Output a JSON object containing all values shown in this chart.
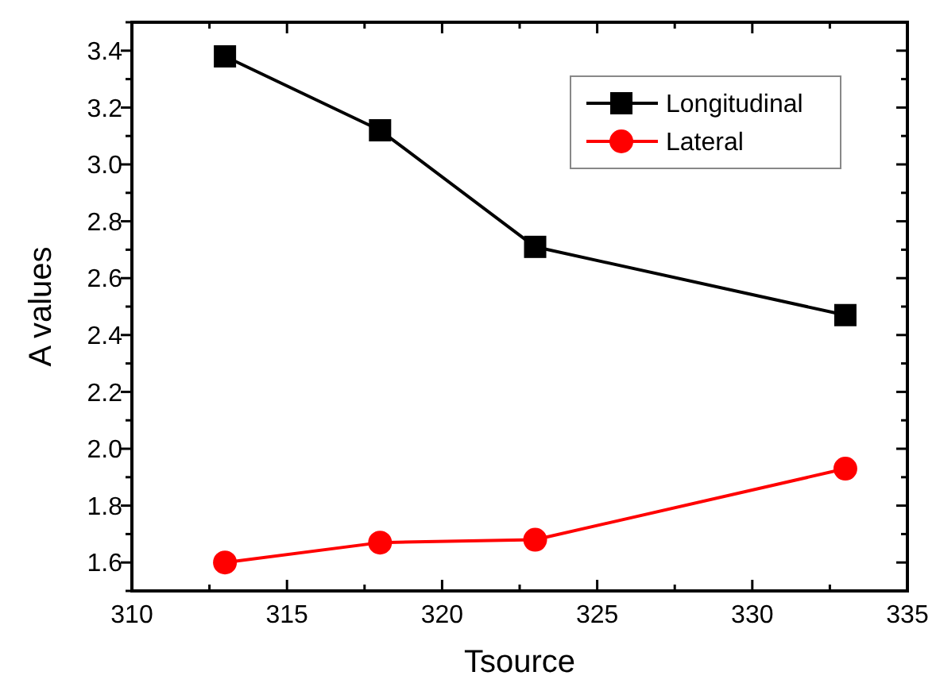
{
  "chart_data": {
    "type": "line",
    "xlabel": "Tsource",
    "ylabel": "A values",
    "xlim": [
      310,
      335
    ],
    "xticks": [
      310,
      {
        "value": 312.5,
        "label": null
      },
      315,
      {
        "value": 317.5,
        "label": null
      },
      320,
      {
        "value": 322.5,
        "label": null
      },
      325,
      {
        "value": 327.5,
        "label": null
      },
      330,
      {
        "value": 332.5,
        "label": null
      },
      335
    ],
    "ylim": [
      1.5,
      3.5
    ],
    "yticks": [
      {
        "value": 1.5,
        "label": null
      },
      {
        "value": 1.6,
        "label": "1.6"
      },
      {
        "value": 1.7,
        "label": null
      },
      {
        "value": 1.8,
        "label": "1.8"
      },
      {
        "value": 1.9,
        "label": null
      },
      {
        "value": 2.0,
        "label": "2.0"
      },
      {
        "value": 2.1,
        "label": null
      },
      {
        "value": 2.2,
        "label": "2.2"
      },
      {
        "value": 2.3,
        "label": null
      },
      {
        "value": 2.4,
        "label": "2.4"
      },
      {
        "value": 2.5,
        "label": null
      },
      {
        "value": 2.6,
        "label": "2.6"
      },
      {
        "value": 2.7,
        "label": null
      },
      {
        "value": 2.8,
        "label": "2.8"
      },
      {
        "value": 2.9,
        "label": null
      },
      {
        "value": 3.0,
        "label": "3.0"
      },
      {
        "value": 3.1,
        "label": null
      },
      {
        "value": 3.2,
        "label": "3.2"
      },
      {
        "value": 3.3,
        "label": null
      },
      {
        "value": 3.4,
        "label": "3.4"
      },
      {
        "value": 3.5,
        "label": null
      }
    ],
    "x": [
      313,
      318,
      323,
      333
    ],
    "legend": "top right",
    "series": [
      {
        "name": "Longitudinal",
        "color": "#000000",
        "marker": "square",
        "values": [
          3.38,
          3.12,
          2.71,
          2.47
        ]
      },
      {
        "name": "Lateral",
        "color": "#ff0000",
        "marker": "circle",
        "values": [
          1.6,
          1.67,
          1.68,
          1.93
        ]
      }
    ]
  }
}
